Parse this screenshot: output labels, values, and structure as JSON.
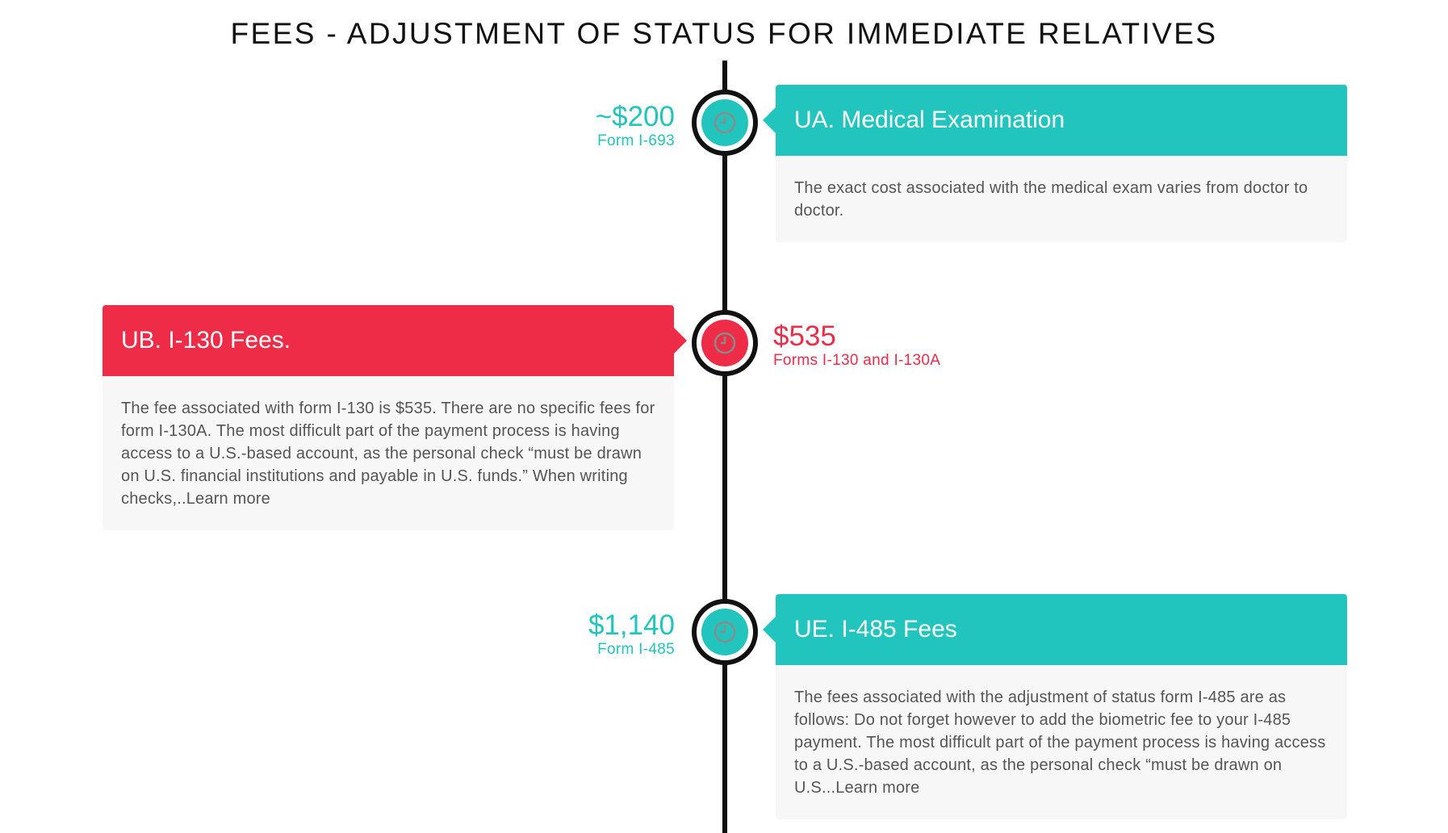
{
  "page": {
    "title": "FEES - ADJUSTMENT OF STATUS FOR IMMEDIATE RELATIVES"
  },
  "colors": {
    "teal": "#22c5be",
    "red": "#ef2c48",
    "line": "#111111"
  },
  "items": [
    {
      "amount": "~$200",
      "form": "Form I-693",
      "title": "UA. Medical Examination",
      "body": "The exact cost associated with the medical exam varies from doctor to doctor.",
      "color": "teal",
      "icon": "clock-icon"
    },
    {
      "amount": "$535",
      "form": "Forms I-130 and I-130A",
      "title": "UB. I-130 Fees.",
      "body": "The fee associated with form I-130 is $535. There are no specific fees for form I-130A. The most difficult part of the payment process is having access to a U.S.-based account, as the personal check “must be drawn on U.S. financial institutions and payable in U.S. funds.” When writing checks,..Learn more",
      "color": "red",
      "icon": "clock-icon"
    },
    {
      "amount": "$1,140",
      "form": "Form I-485",
      "title": "UE. I-485 Fees",
      "body": "The fees associated with the adjustment of status form I-485 are as follows: Do not forget however to add the biometric fee to your I-485 payment. The most difficult part of the payment process is having access to a U.S.-based account, as the personal check “must be drawn on U.S...Learn more",
      "color": "teal",
      "icon": "clock-icon"
    }
  ]
}
